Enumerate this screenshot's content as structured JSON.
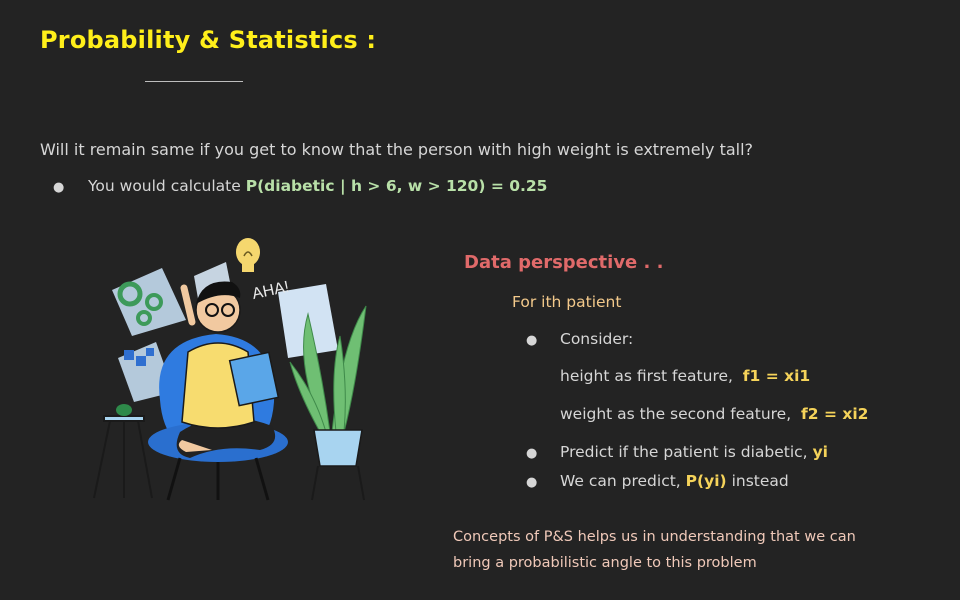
{
  "slide": {
    "title": "Probability & Statistics :",
    "question": "Will it remain same if you get to know that the person with high weight is extremely tall?",
    "calc_prefix": "You would calculate ",
    "calc_formula": "P(diabetic | h > 6, w > 120) = 0.25",
    "bullet_glyph": "●"
  },
  "data_perspective": {
    "title": "Data perspective . .",
    "subtitle": "For ith patient",
    "consider": "Consider:",
    "height_text": "height as first feature,",
    "height_formula": "f1 = xi1",
    "weight_text": "weight as the second feature,",
    "weight_formula": "f2 = xi2",
    "predict_text": "Predict if the patient is diabetic,",
    "predict_var": "yi",
    "predict2_prefix": "We can predict,",
    "predict2_var": "P(yi)",
    "predict2_suffix": "instead"
  },
  "concepts": {
    "line1": "Concepts of P&S helps us in understanding that we can",
    "line2": "bring a probabilistic angle to this problem"
  },
  "illustration": {
    "exclamation": "AHA!",
    "colors": {
      "chair": "#2f7be0",
      "hoodie": "#f7dc6f",
      "book": "#5aa6e8",
      "plant": "#6fbf73",
      "pot": "#a8d4f0",
      "bulb": "#f5d76e"
    }
  }
}
